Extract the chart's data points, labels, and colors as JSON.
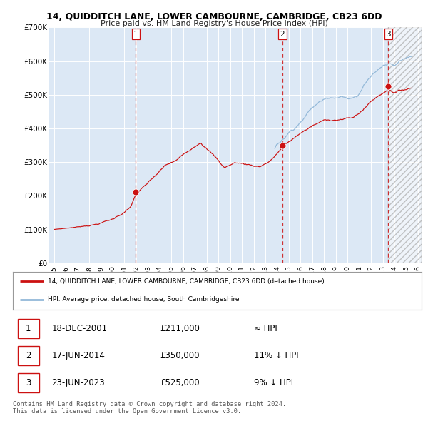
{
  "title": "14, QUIDDITCH LANE, LOWER CAMBOURNE, CAMBRIDGE, CB23 6DD",
  "subtitle": "Price paid vs. HM Land Registry's House Price Index (HPI)",
  "legend_line1": "14, QUIDDITCH LANE, LOWER CAMBOURNE, CAMBRIDGE, CB23 6DD (detached house)",
  "legend_line2": "HPI: Average price, detached house, South Cambridgeshire",
  "ylim": [
    0,
    700000
  ],
  "yticks": [
    0,
    100000,
    200000,
    300000,
    400000,
    500000,
    600000,
    700000
  ],
  "ytick_labels": [
    "£0",
    "£100K",
    "£200K",
    "£300K",
    "£400K",
    "£500K",
    "£600K",
    "£700K"
  ],
  "hpi_color": "#92b8d8",
  "price_color": "#cc1111",
  "marker_color": "#cc1111",
  "vline_color": "#cc1111",
  "bg_color": "#dce8f5",
  "grid_color": "#c0cfe0",
  "sale_points": [
    {
      "year": 2001.97,
      "price": 211000,
      "label": "1"
    },
    {
      "year": 2014.46,
      "price": 350000,
      "label": "2"
    },
    {
      "year": 2023.47,
      "price": 525000,
      "label": "3"
    }
  ],
  "table_rows": [
    {
      "num": "1",
      "date": "18-DEC-2001",
      "price": "£211,000",
      "note": "≈ HPI"
    },
    {
      "num": "2",
      "date": "17-JUN-2014",
      "price": "£350,000",
      "note": "11% ↓ HPI"
    },
    {
      "num": "3",
      "date": "23-JUN-2023",
      "price": "£525,000",
      "note": "9% ↓ HPI"
    }
  ],
  "footer": "Contains HM Land Registry data © Crown copyright and database right 2024.\nThis data is licensed under the Open Government Licence v3.0.",
  "hpi_start_year": 2013.8,
  "hatch_start_year": 2023.47,
  "xlim_min": 1994.6,
  "xlim_max": 2026.3
}
